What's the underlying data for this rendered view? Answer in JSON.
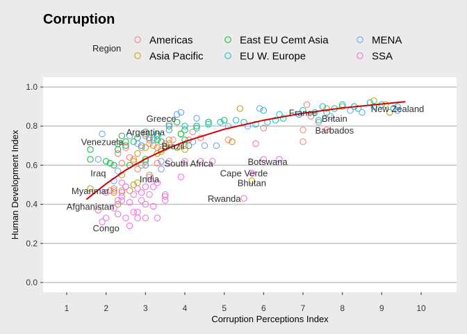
{
  "chart_data": {
    "type": "scatter",
    "title": "Corruption",
    "xlabel": "Corruption Perceptions Index",
    "ylabel": "Human Development Index",
    "xlim": [
      0.4,
      10.9
    ],
    "ylim": [
      -0.05,
      1.05
    ],
    "x_ticks": [
      1,
      2,
      3,
      4,
      5,
      6,
      7,
      8,
      9,
      10
    ],
    "y_ticks": [
      0.0,
      0.2,
      0.4,
      0.6,
      0.8,
      1.0
    ],
    "y_tick_labels": [
      "0.0",
      "0.2",
      "0.4",
      "0.6",
      "0.8",
      "1.0"
    ],
    "grid": true,
    "legend_title": "Region",
    "legend_position": "top",
    "series": [
      {
        "name": "Americas",
        "color": "#F8766D",
        "points": [
          [
            7.1,
            0.91
          ],
          [
            7.2,
            0.85
          ],
          [
            7.4,
            0.82
          ],
          [
            7.6,
            0.78
          ],
          [
            7.0,
            0.78
          ],
          [
            7.0,
            0.72
          ],
          [
            5.8,
            0.71
          ],
          [
            3.0,
            0.76
          ],
          [
            3.2,
            0.74
          ],
          [
            3.6,
            0.73
          ],
          [
            4.2,
            0.77
          ],
          [
            4.4,
            0.74
          ],
          [
            3.7,
            0.73
          ],
          [
            3.1,
            0.71
          ],
          [
            3.3,
            0.69
          ],
          [
            2.3,
            0.66
          ],
          [
            2.5,
            0.69
          ],
          [
            2.6,
            0.64
          ],
          [
            3.0,
            0.6
          ],
          [
            2.8,
            0.58
          ],
          [
            2.4,
            0.61
          ],
          [
            2.7,
            0.63
          ],
          [
            4.0,
            0.7
          ],
          [
            3.5,
            0.71
          ],
          [
            3.9,
            0.76
          ],
          [
            4.1,
            0.73
          ],
          [
            5.1,
            0.73
          ],
          [
            5.2,
            0.72
          ],
          [
            6.0,
            0.79
          ],
          [
            3.1,
            0.73
          ],
          [
            2.9,
            0.69
          ],
          [
            2.2,
            0.48
          ],
          [
            3.3,
            0.61
          ],
          [
            3.4,
            0.68
          ]
        ]
      },
      {
        "name": "Asia Pacific",
        "color": "#B79F00",
        "points": [
          [
            9.1,
            0.91
          ],
          [
            8.8,
            0.93
          ],
          [
            9.2,
            0.87
          ],
          [
            8.3,
            0.9
          ],
          [
            8.0,
            0.9
          ],
          [
            7.6,
            0.89
          ],
          [
            5.4,
            0.89
          ],
          [
            5.2,
            0.72
          ],
          [
            3.5,
            0.69
          ],
          [
            3.6,
            0.71
          ],
          [
            3.8,
            0.69
          ],
          [
            3.2,
            0.7
          ],
          [
            3.0,
            0.69
          ],
          [
            2.8,
            0.66
          ],
          [
            2.7,
            0.62
          ],
          [
            3.1,
            0.55
          ],
          [
            2.5,
            0.49
          ],
          [
            2.6,
            0.47
          ],
          [
            2.7,
            0.5
          ],
          [
            2.4,
            0.47
          ],
          [
            2.8,
            0.51
          ],
          [
            2.1,
            0.47
          ],
          [
            2.2,
            0.46
          ],
          [
            1.6,
            0.48
          ],
          [
            2.3,
            0.4
          ],
          [
            5.7,
            0.52
          ],
          [
            3.0,
            0.62
          ],
          [
            2.9,
            0.6
          ],
          [
            3.3,
            0.66
          ],
          [
            2.4,
            0.55
          ],
          [
            3.4,
            0.67
          ],
          [
            4.0,
            0.68
          ]
        ]
      },
      {
        "name": "East EU Cemt Asia",
        "color": "#00BA38",
        "points": [
          [
            1.6,
            0.63
          ],
          [
            1.6,
            0.68
          ],
          [
            2.0,
            0.62
          ],
          [
            2.1,
            0.61
          ],
          [
            2.3,
            0.68
          ],
          [
            2.3,
            0.71
          ],
          [
            2.4,
            0.75
          ],
          [
            2.5,
            0.72
          ],
          [
            2.5,
            0.7
          ],
          [
            2.7,
            0.72
          ],
          [
            2.8,
            0.74
          ],
          [
            2.9,
            0.7
          ],
          [
            3.1,
            0.74
          ],
          [
            3.3,
            0.73
          ],
          [
            3.3,
            0.75
          ],
          [
            3.4,
            0.72
          ],
          [
            3.6,
            0.8
          ],
          [
            3.9,
            0.76
          ],
          [
            4.0,
            0.78
          ],
          [
            4.0,
            0.73
          ],
          [
            4.1,
            0.7
          ],
          [
            4.3,
            0.8
          ],
          [
            4.6,
            0.82
          ],
          [
            5.0,
            0.83
          ],
          [
            3.0,
            0.63
          ],
          [
            2.2,
            0.6
          ],
          [
            3.0,
            0.77
          ],
          [
            2.6,
            0.6
          ],
          [
            3.8,
            0.82
          ]
        ]
      },
      {
        "name": "EU W. Europe",
        "color": "#00BFC4",
        "points": [
          [
            9.4,
            0.9
          ],
          [
            9.3,
            0.89
          ],
          [
            9.0,
            0.91
          ],
          [
            8.8,
            0.9
          ],
          [
            8.7,
            0.92
          ],
          [
            8.3,
            0.9
          ],
          [
            8.0,
            0.91
          ],
          [
            7.8,
            0.89
          ],
          [
            7.5,
            0.9
          ],
          [
            7.3,
            0.87
          ],
          [
            7.0,
            0.88
          ],
          [
            6.9,
            0.86
          ],
          [
            6.5,
            0.84
          ],
          [
            6.3,
            0.83
          ],
          [
            6.1,
            0.82
          ],
          [
            5.8,
            0.81
          ],
          [
            5.5,
            0.82
          ],
          [
            5.3,
            0.83
          ],
          [
            4.9,
            0.82
          ],
          [
            4.6,
            0.81
          ],
          [
            4.3,
            0.79
          ],
          [
            4.0,
            0.8
          ],
          [
            3.6,
            0.78
          ],
          [
            3.3,
            0.76
          ],
          [
            6.0,
            0.88
          ],
          [
            6.4,
            0.86
          ],
          [
            7.6,
            0.87
          ],
          [
            8.4,
            0.89
          ],
          [
            6.9,
            0.86
          ],
          [
            7.4,
            0.83
          ]
        ]
      },
      {
        "name": "MENA",
        "color": "#619CFF",
        "points": [
          [
            1.8,
            0.63
          ],
          [
            1.9,
            0.76
          ],
          [
            2.2,
            0.52
          ],
          [
            2.3,
            0.57
          ],
          [
            2.6,
            0.75
          ],
          [
            2.8,
            0.71
          ],
          [
            3.0,
            0.75
          ],
          [
            3.4,
            0.58
          ],
          [
            3.4,
            0.62
          ],
          [
            3.8,
            0.86
          ],
          [
            3.9,
            0.87
          ],
          [
            4.3,
            0.84
          ],
          [
            4.5,
            0.7
          ],
          [
            4.8,
            0.7
          ],
          [
            5.1,
            0.8
          ],
          [
            5.9,
            0.89
          ],
          [
            6.9,
            0.86
          ],
          [
            7.7,
            0.85
          ],
          [
            3.2,
            0.73
          ],
          [
            2.9,
            0.7
          ],
          [
            3.6,
            0.81
          ],
          [
            4.2,
            0.72
          ],
          [
            8.5,
            0.87
          ],
          [
            8.2,
            0.88
          ],
          [
            5.6,
            0.8
          ],
          [
            3.0,
            0.6
          ],
          [
            9.4,
            0.88
          ]
        ]
      },
      {
        "name": "SSA",
        "color": "#F564E3",
        "points": [
          [
            1.9,
            0.31
          ],
          [
            2.0,
            0.33
          ],
          [
            2.2,
            0.38
          ],
          [
            2.3,
            0.35
          ],
          [
            2.4,
            0.46
          ],
          [
            2.4,
            0.44
          ],
          [
            2.5,
            0.33
          ],
          [
            2.6,
            0.41
          ],
          [
            2.6,
            0.29
          ],
          [
            2.7,
            0.36
          ],
          [
            2.8,
            0.36
          ],
          [
            2.8,
            0.33
          ],
          [
            2.9,
            0.46
          ],
          [
            2.9,
            0.42
          ],
          [
            3.0,
            0.4
          ],
          [
            3.0,
            0.33
          ],
          [
            3.1,
            0.45
          ],
          [
            3.2,
            0.39
          ],
          [
            3.3,
            0.33
          ],
          [
            3.5,
            0.42
          ],
          [
            3.5,
            0.45
          ],
          [
            3.5,
            0.44
          ],
          [
            3.9,
            0.54
          ],
          [
            4.0,
            0.62
          ],
          [
            4.4,
            0.62
          ],
          [
            4.7,
            0.62
          ],
          [
            5.5,
            0.43
          ],
          [
            5.7,
            0.56
          ],
          [
            6.0,
            0.63
          ],
          [
            6.4,
            0.63
          ],
          [
            2.2,
            0.47
          ],
          [
            2.4,
            0.51
          ],
          [
            2.8,
            0.48
          ],
          [
            3.0,
            0.49
          ],
          [
            3.1,
            0.54
          ],
          [
            3.3,
            0.51
          ],
          [
            3.6,
            0.62
          ],
          [
            2.7,
            0.45
          ],
          [
            2.3,
            0.42
          ],
          [
            2.5,
            0.49
          ],
          [
            1.8,
            0.37
          ],
          [
            2.0,
            0.46
          ],
          [
            2.4,
            0.42
          ],
          [
            3.2,
            0.49
          ]
        ]
      }
    ],
    "trend": {
      "color": "#D40000",
      "points": [
        [
          1.5,
          0.425
        ],
        [
          2,
          0.505
        ],
        [
          2.5,
          0.575
        ],
        [
          3,
          0.632
        ],
        [
          3.5,
          0.68
        ],
        [
          4,
          0.721
        ],
        [
          5,
          0.784
        ],
        [
          6,
          0.83
        ],
        [
          7,
          0.866
        ],
        [
          8,
          0.893
        ],
        [
          9,
          0.913
        ],
        [
          9.6,
          0.925
        ]
      ]
    },
    "annotations": [
      {
        "text": "New Zealand",
        "x": 9.4,
        "y": 0.89
      },
      {
        "text": "France",
        "x": 7.0,
        "y": 0.87
      },
      {
        "text": "Britain",
        "x": 7.8,
        "y": 0.84
      },
      {
        "text": "Barbados",
        "x": 7.8,
        "y": 0.78
      },
      {
        "text": "Greece",
        "x": 3.4,
        "y": 0.84
      },
      {
        "text": "Argentina",
        "x": 3.0,
        "y": 0.77
      },
      {
        "text": "Brazil",
        "x": 3.7,
        "y": 0.7
      },
      {
        "text": "Venezuela",
        "x": 1.9,
        "y": 0.72
      },
      {
        "text": "South Africa",
        "x": 4.1,
        "y": 0.61
      },
      {
        "text": "Botswana",
        "x": 6.1,
        "y": 0.62
      },
      {
        "text": "Cape Verde",
        "x": 5.5,
        "y": 0.56
      },
      {
        "text": "Bhutan",
        "x": 5.7,
        "y": 0.51
      },
      {
        "text": "Rwanda",
        "x": 5.0,
        "y": 0.43
      },
      {
        "text": "Iraq",
        "x": 1.8,
        "y": 0.56
      },
      {
        "text": "India",
        "x": 3.1,
        "y": 0.53
      },
      {
        "text": "Myanmar",
        "x": 1.6,
        "y": 0.47
      },
      {
        "text": "Afghanistan",
        "x": 1.6,
        "y": 0.39
      },
      {
        "text": "Congo",
        "x": 2.0,
        "y": 0.28
      }
    ]
  }
}
